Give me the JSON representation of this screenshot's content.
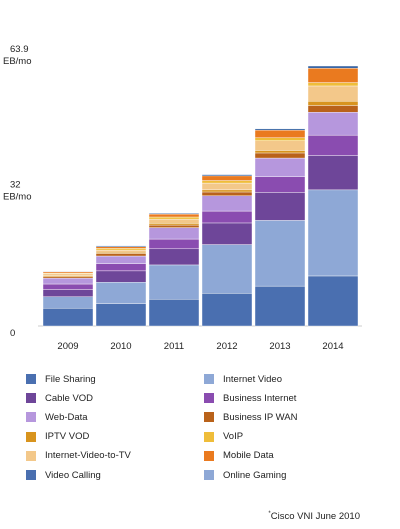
{
  "chart_data": {
    "type": "bar",
    "stacked": true,
    "categories": [
      "2009",
      "2010",
      "2011",
      "2012",
      "2013",
      "2014"
    ],
    "y_ticks": [
      {
        "value": 0,
        "label": "0",
        "unit": ""
      },
      {
        "value": 32,
        "label": "32",
        "unit": "EB/mo"
      },
      {
        "value": 63.9,
        "label": "63.9",
        "unit": "EB/mo"
      }
    ],
    "ylim": [
      0,
      63.9
    ],
    "grid": false,
    "legend_position": "bottom",
    "series": [
      {
        "name": "Video Calling",
        "color": "#4a6fb0",
        "values": [
          4.2,
          5.3,
          6.3,
          7.7,
          9.4,
          11.8
        ]
      },
      {
        "name": "Online Gaming",
        "color": "#8ea8d6",
        "values": [
          2.7,
          5.0,
          8.1,
          11.5,
          15.5,
          20.3
        ]
      },
      {
        "name": "Internet-Video-to-TV",
        "color": "#f3c88a",
        "values": [
          0.0,
          0.0,
          0.0,
          0.0,
          0.0,
          0.0
        ]
      },
      {
        "name": "IPTV VOD",
        "color": "#d8941e",
        "values": [
          0.0,
          0.0,
          0.0,
          0.0,
          0.0,
          0.0
        ]
      },
      {
        "name": "Cable VOD",
        "color": "#6e4699",
        "values": [
          1.7,
          2.7,
          3.8,
          5.1,
          6.6,
          8.1
        ]
      },
      {
        "name": "Business Internet",
        "color": "#8a4cb0",
        "values": [
          1.3,
          1.7,
          2.3,
          2.8,
          3.7,
          4.8
        ]
      },
      {
        "name": "Web-Data",
        "color": "#b697dd",
        "values": [
          1.4,
          1.8,
          2.7,
          3.6,
          4.4,
          5.4
        ]
      },
      {
        "name": "Business IP WAN",
        "color": "#b9621a",
        "values": [
          0.3,
          0.6,
          0.6,
          0.9,
          1.2,
          1.6
        ]
      },
      {
        "name": "IPTV VOD",
        "color": "#d8941e",
        "values": [
          0.3,
          0.3,
          0.4,
          0.5,
          0.6,
          1.0
        ]
      },
      {
        "name": "Internet-Video-to-TV",
        "color": "#f3c88a",
        "values": [
          0.4,
          0.5,
          1.0,
          1.6,
          2.3,
          3.6
        ]
      },
      {
        "name": "VoIP",
        "color": "#efbd3a",
        "values": [
          0.2,
          0.4,
          0.5,
          0.6,
          0.7,
          0.8
        ]
      },
      {
        "name": "Mobile Data",
        "color": "#ea7a1f",
        "values": [
          0.3,
          0.4,
          0.7,
          1.1,
          1.8,
          3.4
        ]
      },
      {
        "name": "File Sharing",
        "color": "#2f5ea0",
        "values": [
          0.1,
          0.2,
          0.2,
          0.3,
          0.3,
          0.5
        ]
      }
    ]
  },
  "legend": [
    {
      "label": "File Sharing",
      "color": "#4a6fb0"
    },
    {
      "label": "Internet Video",
      "color": "#8ea8d6"
    },
    {
      "label": "Cable VOD",
      "color": "#6e4699"
    },
    {
      "label": "Business Internet",
      "color": "#8a4cb0"
    },
    {
      "label": "Web-Data",
      "color": "#b697dd"
    },
    {
      "label": "Business IP WAN",
      "color": "#b9621a"
    },
    {
      "label": "IPTV VOD",
      "color": "#d8941e"
    },
    {
      "label": "VoIP",
      "color": "#efbd3a"
    },
    {
      "label": "Internet-Video-to-TV",
      "color": "#f3c88a"
    },
    {
      "label": "Mobile Data",
      "color": "#ea7a1f"
    },
    {
      "label": "Video Calling",
      "color": "#4a6fb0"
    },
    {
      "label": "Online Gaming",
      "color": "#8ea8d6"
    }
  ],
  "source": {
    "mark": "*",
    "text": "Cisco VNI June 2010"
  }
}
